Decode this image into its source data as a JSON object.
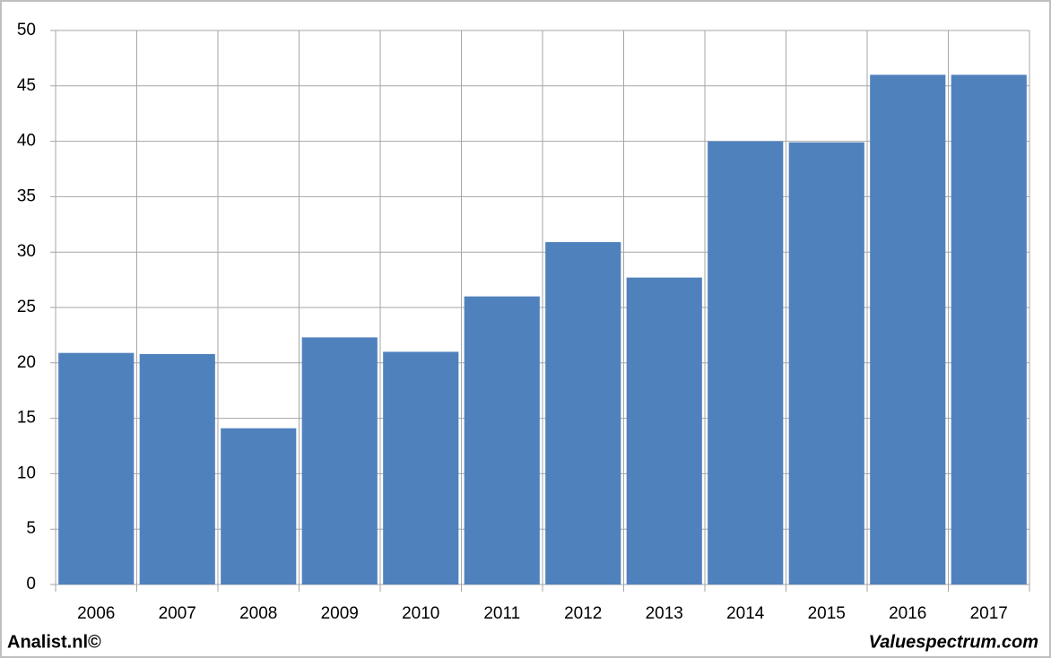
{
  "chart_data": {
    "type": "bar",
    "categories": [
      "2006",
      "2007",
      "2008",
      "2009",
      "2010",
      "2011",
      "2012",
      "2013",
      "2014",
      "2015",
      "2016",
      "2017"
    ],
    "values": [
      20.9,
      20.8,
      14.1,
      22.3,
      21.0,
      26.0,
      30.9,
      27.7,
      40.0,
      39.9,
      46.0,
      46.0
    ],
    "color": "#4f81bd",
    "ylim": [
      0,
      50
    ],
    "yticks": [
      0,
      5,
      10,
      15,
      20,
      25,
      30,
      35,
      40,
      45,
      50
    ],
    "grid": true,
    "credits": [
      "Analist.nl©",
      "Valuespectrum.com"
    ]
  }
}
